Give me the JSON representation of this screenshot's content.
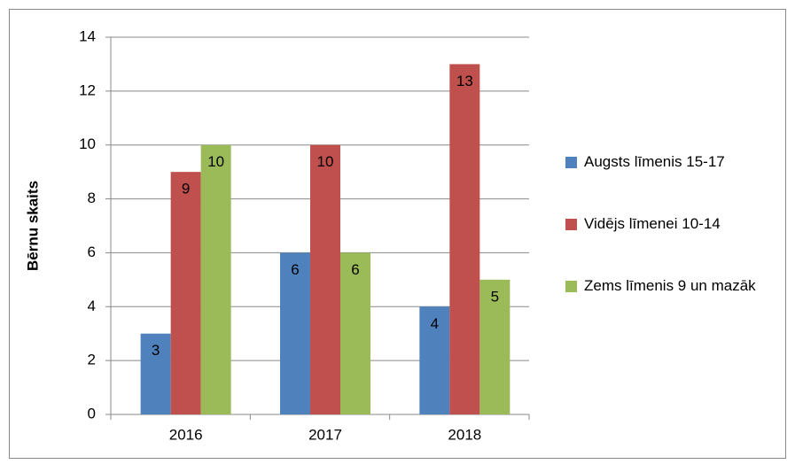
{
  "chart_data": {
    "type": "bar",
    "categories": [
      "2016",
      "2017",
      "2018"
    ],
    "series": [
      {
        "name": "Augsts līmenis 15-17",
        "color": "#4f81bd",
        "values": [
          3,
          6,
          4
        ]
      },
      {
        "name": "Vidējs līmenei 10-14",
        "color": "#c0504d",
        "values": [
          9,
          10,
          13
        ]
      },
      {
        "name": "Zems līmenis 9 un mazāk",
        "color": "#9bbb59",
        "values": [
          10,
          6,
          5
        ]
      }
    ],
    "y_label": "Bērnu skaits",
    "ylim": [
      0,
      14
    ],
    "yticks": [
      0,
      2,
      4,
      6,
      8,
      10,
      12,
      14
    ],
    "grid": true,
    "legend": "right"
  }
}
